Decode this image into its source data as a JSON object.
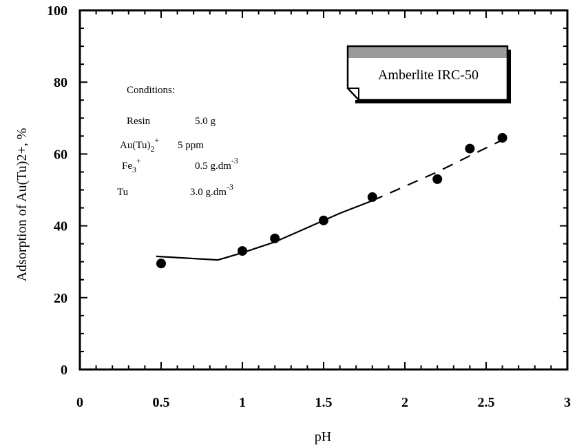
{
  "chart_data": {
    "type": "scatter",
    "title": "",
    "xlabel": "pH",
    "ylabel": "Adsorption of Au(Tu)2+, %",
    "xlim": [
      0,
      3
    ],
    "ylim": [
      0,
      100
    ],
    "x_ticks": [
      "0",
      "0.5",
      "1",
      "1.5",
      "2",
      "2.5",
      "3"
    ],
    "y_ticks": [
      "0",
      "20",
      "40",
      "60",
      "80",
      "100"
    ],
    "grid": false,
    "legend_position": "top-right",
    "legend_label": "Amberlite IRC-50",
    "series": [
      {
        "type": "scatter",
        "x": [
          0.5,
          1.0,
          1.2,
          1.5,
          1.8,
          2.2,
          2.4,
          2.6
        ],
        "y": [
          29.5,
          33,
          36.5,
          41.5,
          48,
          53,
          61.5,
          64.5
        ]
      },
      {
        "type": "line",
        "style": "solid",
        "x": [
          0.47,
          0.85,
          1.0,
          1.2,
          1.4,
          1.6,
          1.8
        ],
        "y": [
          31.5,
          30.5,
          32.5,
          35.5,
          39.5,
          43.5,
          47
        ]
      },
      {
        "type": "line",
        "style": "dashed",
        "x": [
          1.8,
          2.0,
          2.2,
          2.4,
          2.65
        ],
        "y": [
          47,
          51,
          55,
          59.5,
          65
        ]
      }
    ],
    "annotations": {
      "title": "Conditions:",
      "rows": [
        [
          "Resin",
          "5.0 g"
        ],
        [
          "Au(Tu)",
          "5 ppm"
        ],
        [
          "Fe",
          "0.5 g.dm"
        ],
        [
          "Tu",
          "3.0 g.dm"
        ]
      ],
      "extras": {
        "au_sub": "2",
        "au_sup": "+",
        "fe_sub": "3",
        "fe_sup": "+",
        "unit_sup": "-3"
      }
    }
  }
}
